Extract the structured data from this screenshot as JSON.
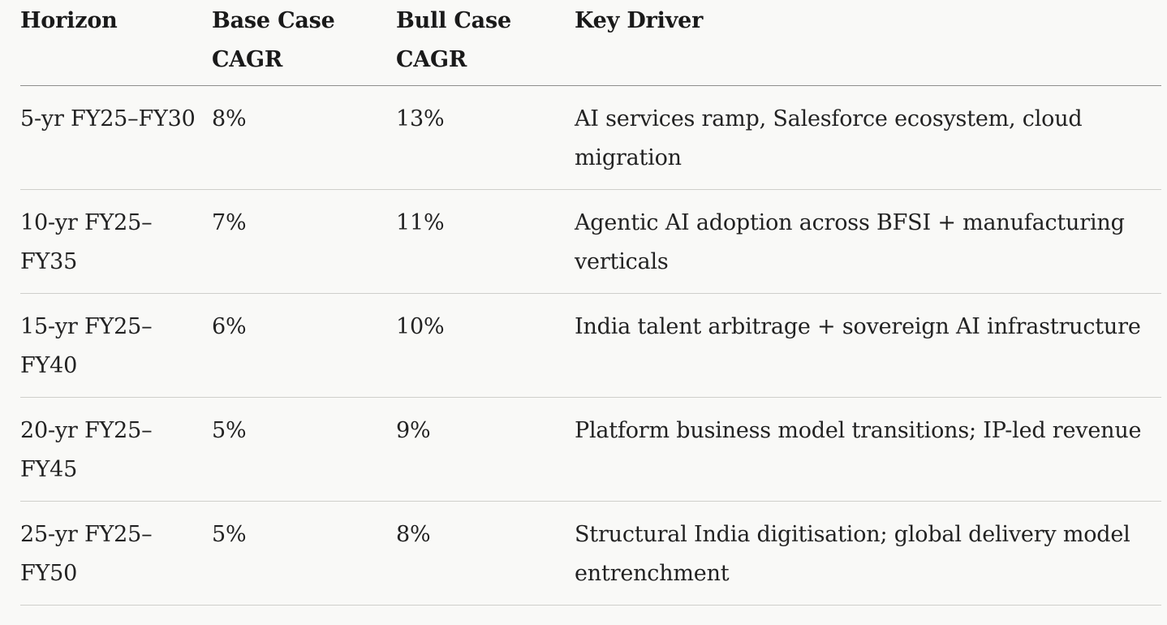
{
  "table": {
    "headers": [
      "Horizon",
      "Base Case CAGR",
      "Bull Case CAGR",
      "Key Driver"
    ],
    "rows": [
      {
        "horizon": "5-yr FY25–FY30",
        "base": "8%",
        "bull": "13%",
        "driver": "AI services ramp, Salesforce ecosystem, cloud migration"
      },
      {
        "horizon": "10-yr FY25–FY35",
        "base": "7%",
        "bull": "11%",
        "driver": "Agentic AI adoption across BFSI + manufacturing verticals"
      },
      {
        "horizon": "15-yr FY25–FY40",
        "base": "6%",
        "bull": "10%",
        "driver": "India talent arbitrage + sovereign AI infrastructure"
      },
      {
        "horizon": "20-yr FY25–FY45",
        "base": "5%",
        "bull": "9%",
        "driver": "Platform business model transitions; IP-led revenue"
      },
      {
        "horizon": "25-yr FY25–FY50",
        "base": "5%",
        "bull": "8%",
        "driver": "Structural India digitisation; global delivery model entrenchment"
      }
    ]
  }
}
